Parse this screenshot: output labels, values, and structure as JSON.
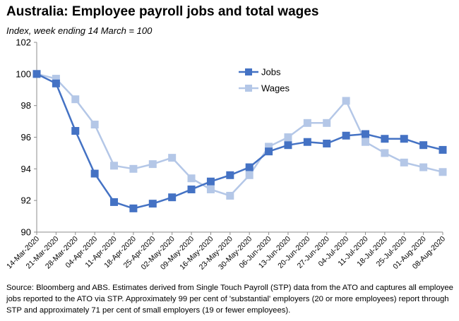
{
  "title": "Australia:  Employee payroll jobs and total wages",
  "subtitle": "Index, week ending 14 March = 100",
  "source": "Source: Bloomberg and ABS.  Estimates derived from Single Touch Payroll (STP) data from the ATO and captures all employee jobs reported to the ATO via STP.  Approximately 99 per cent of 'substantial' employers (20 or more employees) report through STP and approximately 71 per cent of small employers (19 or fewer employees).",
  "chart_data": {
    "type": "line",
    "categories": [
      "14-Mar-2020",
      "21-Mar-2020",
      "28-Mar-2020",
      "04-Apr-2020",
      "11-Apr-2020",
      "18-Apr-2020",
      "25-Apr-2020",
      "02-May-2020",
      "09-May-2020",
      "16-May-2020",
      "23-May-2020",
      "30-May-2020",
      "06-Jun-2020",
      "13-Jun-2020",
      "20-Jun-2020",
      "27-Jun-2020",
      "04-Jul-2020",
      "11-Jul-2020",
      "18-Jul-2020",
      "25-Jul-2020",
      "01-Aug-2020",
      "08-Aug-2020"
    ],
    "series": [
      {
        "name": "Jobs",
        "color": "#4472C4",
        "values": [
          100.0,
          99.4,
          96.4,
          93.7,
          91.9,
          91.5,
          91.8,
          92.2,
          92.7,
          93.2,
          93.6,
          94.1,
          95.1,
          95.5,
          95.7,
          95.6,
          96.1,
          96.2,
          95.9,
          95.9,
          95.5,
          95.2
        ]
      },
      {
        "name": "Wages",
        "color": "#B4C7E7",
        "values": [
          100.0,
          99.7,
          98.4,
          96.8,
          94.2,
          94.0,
          94.3,
          94.7,
          93.4,
          92.7,
          92.3,
          93.6,
          95.4,
          96.0,
          96.9,
          96.9,
          98.3,
          95.7,
          95.0,
          94.4,
          94.1,
          93.8
        ]
      }
    ],
    "ylim": [
      90,
      102
    ],
    "yticks": [
      "90",
      "92",
      "94",
      "96",
      "98",
      "100",
      "102"
    ],
    "grid": false,
    "legend_position": "top-center"
  }
}
